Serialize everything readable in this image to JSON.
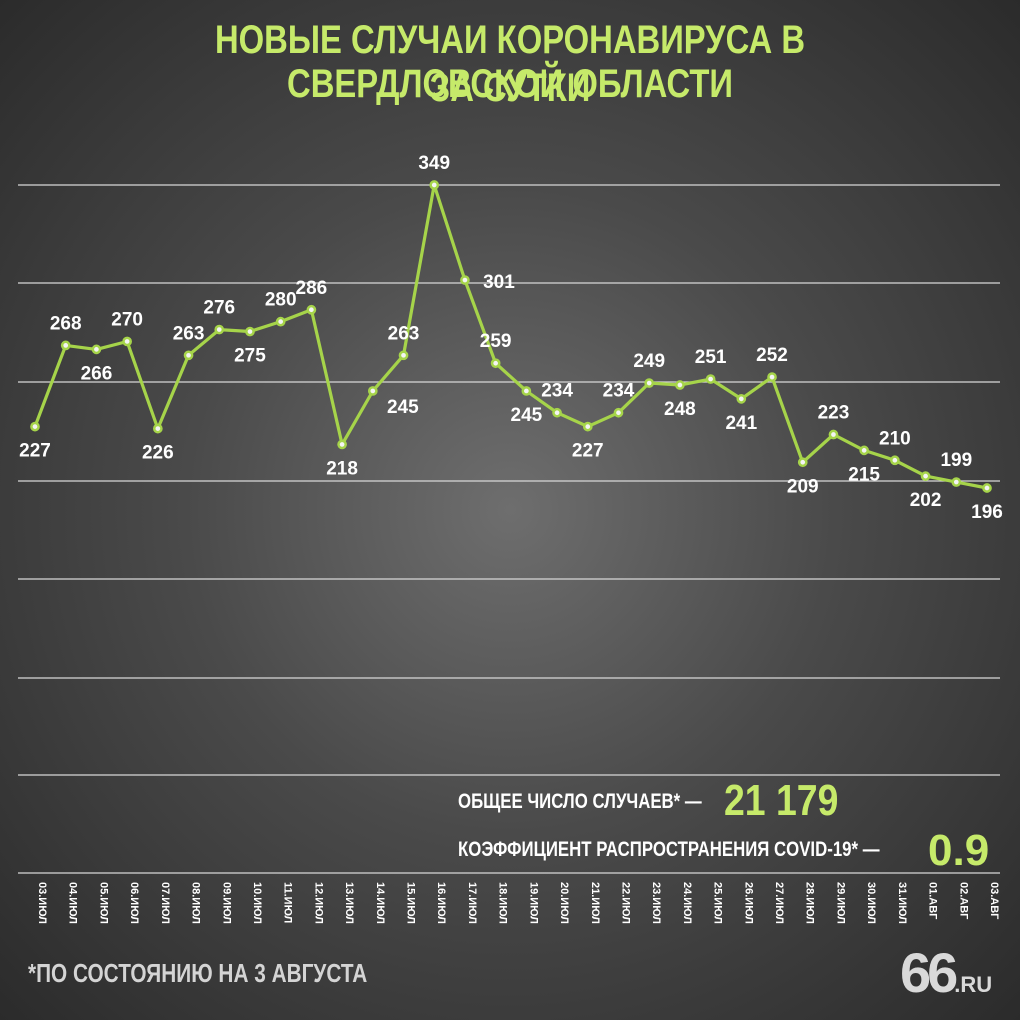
{
  "title_line1": "НОВЫЕ СЛУЧАИ КОРОНАВИРУСА В СВЕРДЛОВСКОЙ ОБЛАСТИ",
  "title_line2": "ЗА СУТКИ",
  "chart_data": {
    "type": "line",
    "title": "НОВЫЕ СЛУЧАИ КОРОНАВИРУСА В СВЕРДЛОВСКОЙ ОБЛАСТИ ЗА СУТКИ",
    "categories": [
      "03.ИЮЛ",
      "04.ИЮЛ",
      "05.ИЮЛ",
      "06.ИЮЛ",
      "07.ИЮЛ",
      "08.ИЮЛ",
      "09.ИЮЛ",
      "10.ИЮЛ",
      "11.ИЮЛ",
      "12.ИЮЛ",
      "13.ИЮЛ",
      "14.ИЮЛ",
      "15.ИЮЛ",
      "16.ИЮЛ",
      "17.ИЮЛ",
      "18.ИЮЛ",
      "19.ИЮЛ",
      "20.ИЮЛ",
      "21.ИЮЛ",
      "22.ИЮЛ",
      "23.ИЮЛ",
      "24.ИЮЛ",
      "25.ИЮЛ",
      "26.ИЮЛ",
      "27.ИЮЛ",
      "28.ИЮЛ",
      "29.ИЮЛ",
      "30.ИЮЛ",
      "31.ИЮЛ",
      "01.АВГ",
      "02.АВГ",
      "03.АВГ"
    ],
    "values": [
      227,
      268,
      266,
      270,
      226,
      263,
      276,
      275,
      280,
      286,
      218,
      245,
      263,
      349,
      301,
      259,
      245,
      234,
      227,
      234,
      249,
      248,
      251,
      241,
      252,
      209,
      223,
      215,
      210,
      202,
      199,
      196
    ],
    "grid": true,
    "legend": "none"
  },
  "stats": {
    "total_label": "ОБЩЕЕ ЧИСЛО СЛУЧАЕВ* —",
    "total_value": "21 179",
    "r_label": "КОЭФФИЦИЕНТ РАСПРОСТРАНЕНИЯ COVID-19* —",
    "r_value": "0.9"
  },
  "footnote": "*ПО СОСТОЯНИЮ НА 3 АВГУСТА",
  "logo": {
    "number": "66",
    "suffix": ".RU"
  },
  "colors": {
    "accent": "#c6ea6a",
    "line": "#a6d44a",
    "background": "#4a4a4a"
  }
}
